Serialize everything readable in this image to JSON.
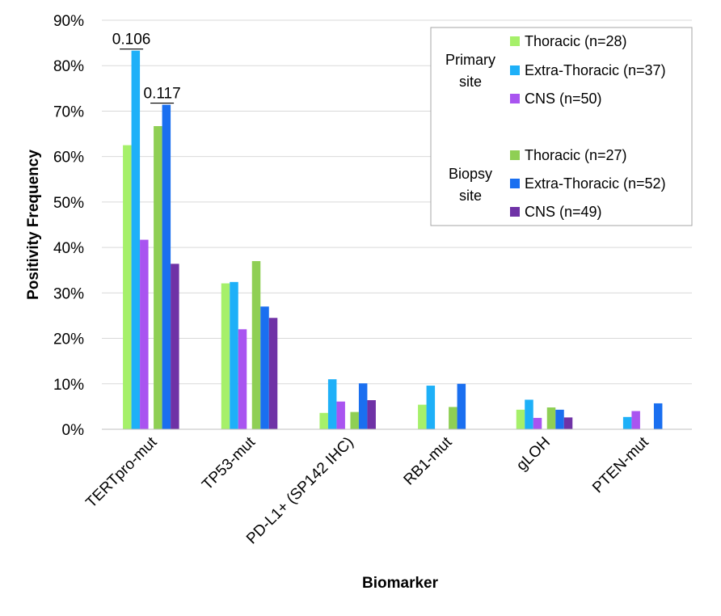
{
  "chart_data": {
    "type": "bar",
    "xlabel": "Biomarker",
    "ylabel": "Positivity Frequency",
    "ylim": [
      0,
      90
    ],
    "yticks": [
      "0%",
      "10%",
      "20%",
      "30%",
      "40%",
      "50%",
      "60%",
      "70%",
      "80%",
      "90%"
    ],
    "categories": [
      "TERTpro-mut",
      "TP53-mut",
      "PD-L1+ (SP142 IHC)",
      "RB1-mut",
      "gLOH",
      "PTEN-mut"
    ],
    "series": [
      {
        "name": "Thoracic (n=28)",
        "group": "primary",
        "color": "#a6f06a",
        "values": [
          62.5,
          32.1,
          3.6,
          5.4,
          4.3,
          0
        ]
      },
      {
        "name": "Extra-Thoracic (n=37)",
        "group": "primary",
        "color": "#1eb0f8",
        "values": [
          83.3,
          32.4,
          11.0,
          9.6,
          6.5,
          2.7
        ]
      },
      {
        "name": "CNS (n=50)",
        "group": "primary",
        "color": "#a954f0",
        "values": [
          41.7,
          22.0,
          6.1,
          0,
          2.5,
          4.0
        ]
      },
      {
        "name": "Thoracic (n=27)",
        "group": "biopsy",
        "color": "#8fcf54",
        "values": [
          66.7,
          37.0,
          3.8,
          4.9,
          4.8,
          0
        ]
      },
      {
        "name": "Extra-Thoracic (n=52)",
        "group": "biopsy",
        "color": "#1a6ff0",
        "values": [
          71.4,
          27.0,
          10.1,
          10.0,
          4.3,
          5.7
        ]
      },
      {
        "name": "CNS (n=49)",
        "group": "biopsy",
        "color": "#6f32a6",
        "values": [
          36.4,
          24.5,
          6.4,
          0,
          2.6,
          0
        ]
      }
    ],
    "legend": {
      "position": "top-right",
      "group_labels": {
        "primary": [
          "Primary",
          "site"
        ],
        "biopsy": [
          "Biopsy",
          "site"
        ]
      }
    },
    "annotations": [
      {
        "text": "0.106",
        "category": "TERTpro-mut",
        "series_from": 0,
        "series_to": 1,
        "y": 83.3
      },
      {
        "text": "0.117",
        "category": "TERTpro-mut",
        "series_from": 3,
        "series_to": 4,
        "y": 71.4
      }
    ],
    "grid": true
  }
}
